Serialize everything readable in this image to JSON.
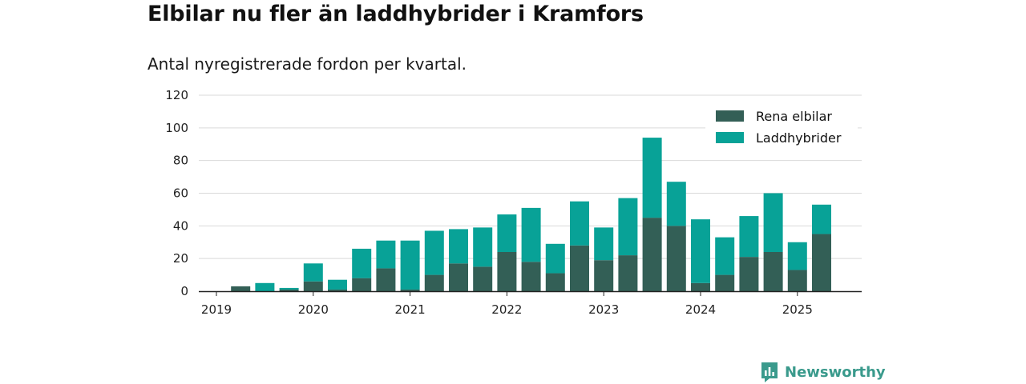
{
  "header": {
    "title": "Elbilar nu fler än laddhybrider i Kramfors",
    "subtitle": "Antal nyregistrerade fordon per kvartal."
  },
  "brand": {
    "name": "Newsworthy",
    "color": "#3a9a8c",
    "icon": "newsworthy-logo-icon"
  },
  "chart_data": {
    "type": "bar",
    "stacked": true,
    "title": "",
    "xlabel": "",
    "ylabel": "",
    "ylim": [
      0,
      120
    ],
    "yticks": [
      0,
      20,
      40,
      60,
      80,
      100,
      120
    ],
    "xtick_labels": [
      "2019",
      "2020",
      "2021",
      "2022",
      "2023",
      "2024",
      "2025"
    ],
    "grid": true,
    "legend_position": "top-right",
    "categories": [
      "2019 Q1",
      "2019 Q2",
      "2019 Q3",
      "2019 Q4",
      "2020 Q1",
      "2020 Q2",
      "2020 Q3",
      "2020 Q4",
      "2021 Q1",
      "2021 Q2",
      "2021 Q3",
      "2021 Q4",
      "2022 Q1",
      "2022 Q2",
      "2022 Q3",
      "2022 Q4",
      "2023 Q1",
      "2023 Q2",
      "2023 Q3",
      "2023 Q4",
      "2024 Q1",
      "2024 Q2",
      "2024 Q3",
      "2024 Q4",
      "2025 Q1",
      "2025 Q2"
    ],
    "series": [
      {
        "name": "Rena elbilar",
        "color": "#335f56",
        "values": [
          0,
          3,
          0,
          1,
          6,
          1,
          8,
          14,
          1,
          10,
          17,
          15,
          24,
          18,
          11,
          28,
          19,
          22,
          45,
          40,
          5,
          10,
          21,
          24,
          13,
          35
        ]
      },
      {
        "name": "Laddhybrider",
        "color": "#08a297",
        "values": [
          0,
          0,
          5,
          1,
          11,
          6,
          18,
          17,
          30,
          27,
          21,
          24,
          23,
          33,
          18,
          27,
          20,
          35,
          49,
          27,
          39,
          23,
          25,
          36,
          17,
          18
        ]
      }
    ]
  }
}
